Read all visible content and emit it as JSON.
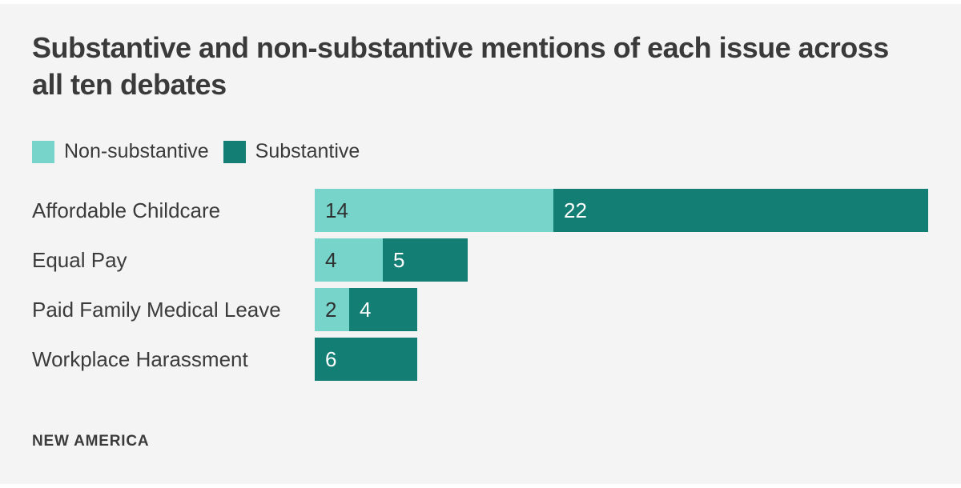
{
  "title": "Substantive and non-substantive mentions of each issue across all ten debates",
  "footer": "NEW AMERICA",
  "colors": {
    "background": "#f4f4f4",
    "page_edge": "#ffffff",
    "non_substantive": "#77d4cb",
    "substantive": "#127e74",
    "text": "#3a3a3a"
  },
  "chart_data": {
    "type": "bar",
    "orientation": "horizontal",
    "stacked": true,
    "title": "Substantive and non-substantive mentions of each issue across all ten debates",
    "categories": [
      "Affordable Childcare",
      "Equal Pay",
      "Paid Family Medical Leave",
      "Workplace Harassment"
    ],
    "series": [
      {
        "name": "Non-substantive",
        "color": "#77d4cb",
        "values": [
          14,
          4,
          2,
          0
        ]
      },
      {
        "name": "Substantive",
        "color": "#127e74",
        "values": [
          22,
          5,
          4,
          6
        ]
      }
    ],
    "totals": [
      36,
      9,
      6,
      6
    ],
    "xlabel": "",
    "ylabel": "",
    "xlim": [
      0,
      36
    ],
    "grid": false,
    "axis_ticks_visible": false,
    "data_labels": "inside-start",
    "legend_position": "top-left"
  }
}
